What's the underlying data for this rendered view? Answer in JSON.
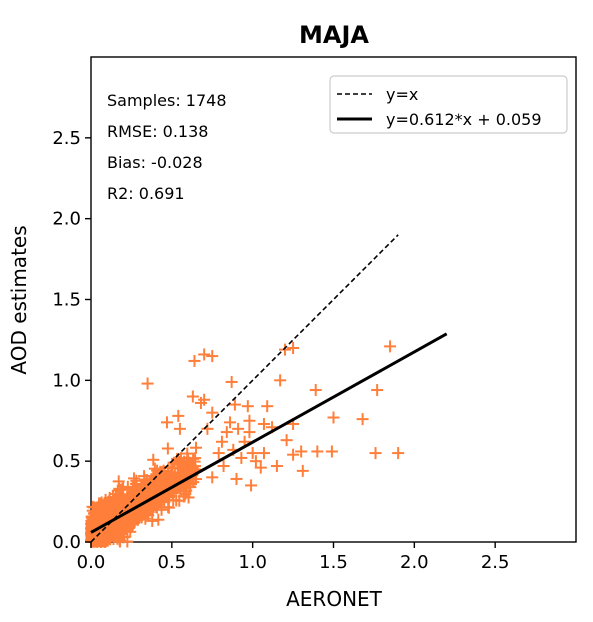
{
  "chart_data": {
    "type": "scatter",
    "title": "MAJA",
    "xlabel": "AERONET",
    "ylabel": "AOD estimates",
    "xlim": [
      0,
      3.0
    ],
    "ylim": [
      0,
      3.0
    ],
    "xticks": [
      "0.0",
      "0.5",
      "1.0",
      "1.5",
      "2.0",
      "2.5"
    ],
    "yticks": [
      "0.0",
      "0.5",
      "1.0",
      "1.5",
      "2.0",
      "2.5"
    ],
    "stats": [
      "Samples: 1748",
      "RMSE: 0.138",
      "Bias: -0.028",
      "R2: 0.691"
    ],
    "legend": {
      "position": "top-right",
      "entries": [
        {
          "label": "y=x",
          "style": "dashed"
        },
        {
          "label": "y=0.612*x + 0.059",
          "style": "solid"
        }
      ]
    },
    "identity_line": {
      "x": [
        0,
        1.9
      ],
      "y": [
        0,
        1.9
      ]
    },
    "fit_line": {
      "x": [
        0,
        2.2
      ],
      "y": [
        0.059,
        1.2874
      ],
      "slope": 0.612,
      "intercept": 0.059
    },
    "colors": {
      "points": "#ff7f3a",
      "fit": "#000000",
      "identity": "#000000"
    },
    "samples_count": 1748,
    "points_outliers": [
      [
        0.35,
        0.98
      ],
      [
        0.7,
        1.16
      ],
      [
        0.75,
        1.15
      ],
      [
        0.87,
        0.99
      ],
      [
        0.89,
        0.85
      ],
      [
        1.2,
        1.19
      ],
      [
        1.25,
        1.2
      ],
      [
        1.85,
        1.21
      ],
      [
        1.17,
        1.0
      ],
      [
        1.39,
        0.94
      ],
      [
        1.5,
        0.77
      ],
      [
        1.68,
        0.76
      ],
      [
        1.77,
        0.94
      ],
      [
        1.76,
        0.55
      ],
      [
        1.9,
        0.55
      ],
      [
        1.49,
        0.56
      ],
      [
        1.4,
        0.56
      ],
      [
        1.3,
        0.56
      ],
      [
        1.31,
        0.44
      ],
      [
        1.25,
        0.54
      ],
      [
        1.07,
        0.55
      ],
      [
        1.0,
        0.55
      ],
      [
        1.09,
        0.84
      ],
      [
        0.97,
        0.84
      ],
      [
        0.75,
        0.8
      ],
      [
        0.68,
        0.86
      ],
      [
        0.7,
        0.88
      ],
      [
        0.81,
        0.62
      ],
      [
        0.72,
        0.7
      ],
      [
        0.55,
        0.7
      ],
      [
        0.47,
        0.74
      ],
      [
        0.54,
        0.78
      ],
      [
        0.63,
        0.9
      ],
      [
        0.64,
        1.12
      ],
      [
        0.95,
        0.62
      ],
      [
        1.05,
        0.46
      ],
      [
        0.99,
        0.35
      ],
      [
        0.82,
        0.47
      ],
      [
        0.75,
        0.4
      ],
      [
        0.9,
        0.39
      ],
      [
        1.15,
        0.47
      ],
      [
        1.02,
        0.5
      ],
      [
        1.21,
        0.63
      ],
      [
        1.12,
        0.71
      ],
      [
        0.98,
        0.75
      ],
      [
        0.91,
        0.7
      ],
      [
        0.86,
        0.74
      ],
      [
        1.25,
        0.73
      ],
      [
        0.88,
        0.57
      ],
      [
        0.98,
        0.68
      ],
      [
        1.07,
        0.73
      ],
      [
        0.93,
        0.52
      ],
      [
        0.79,
        0.55
      ],
      [
        0.84,
        0.68
      ]
    ]
  }
}
